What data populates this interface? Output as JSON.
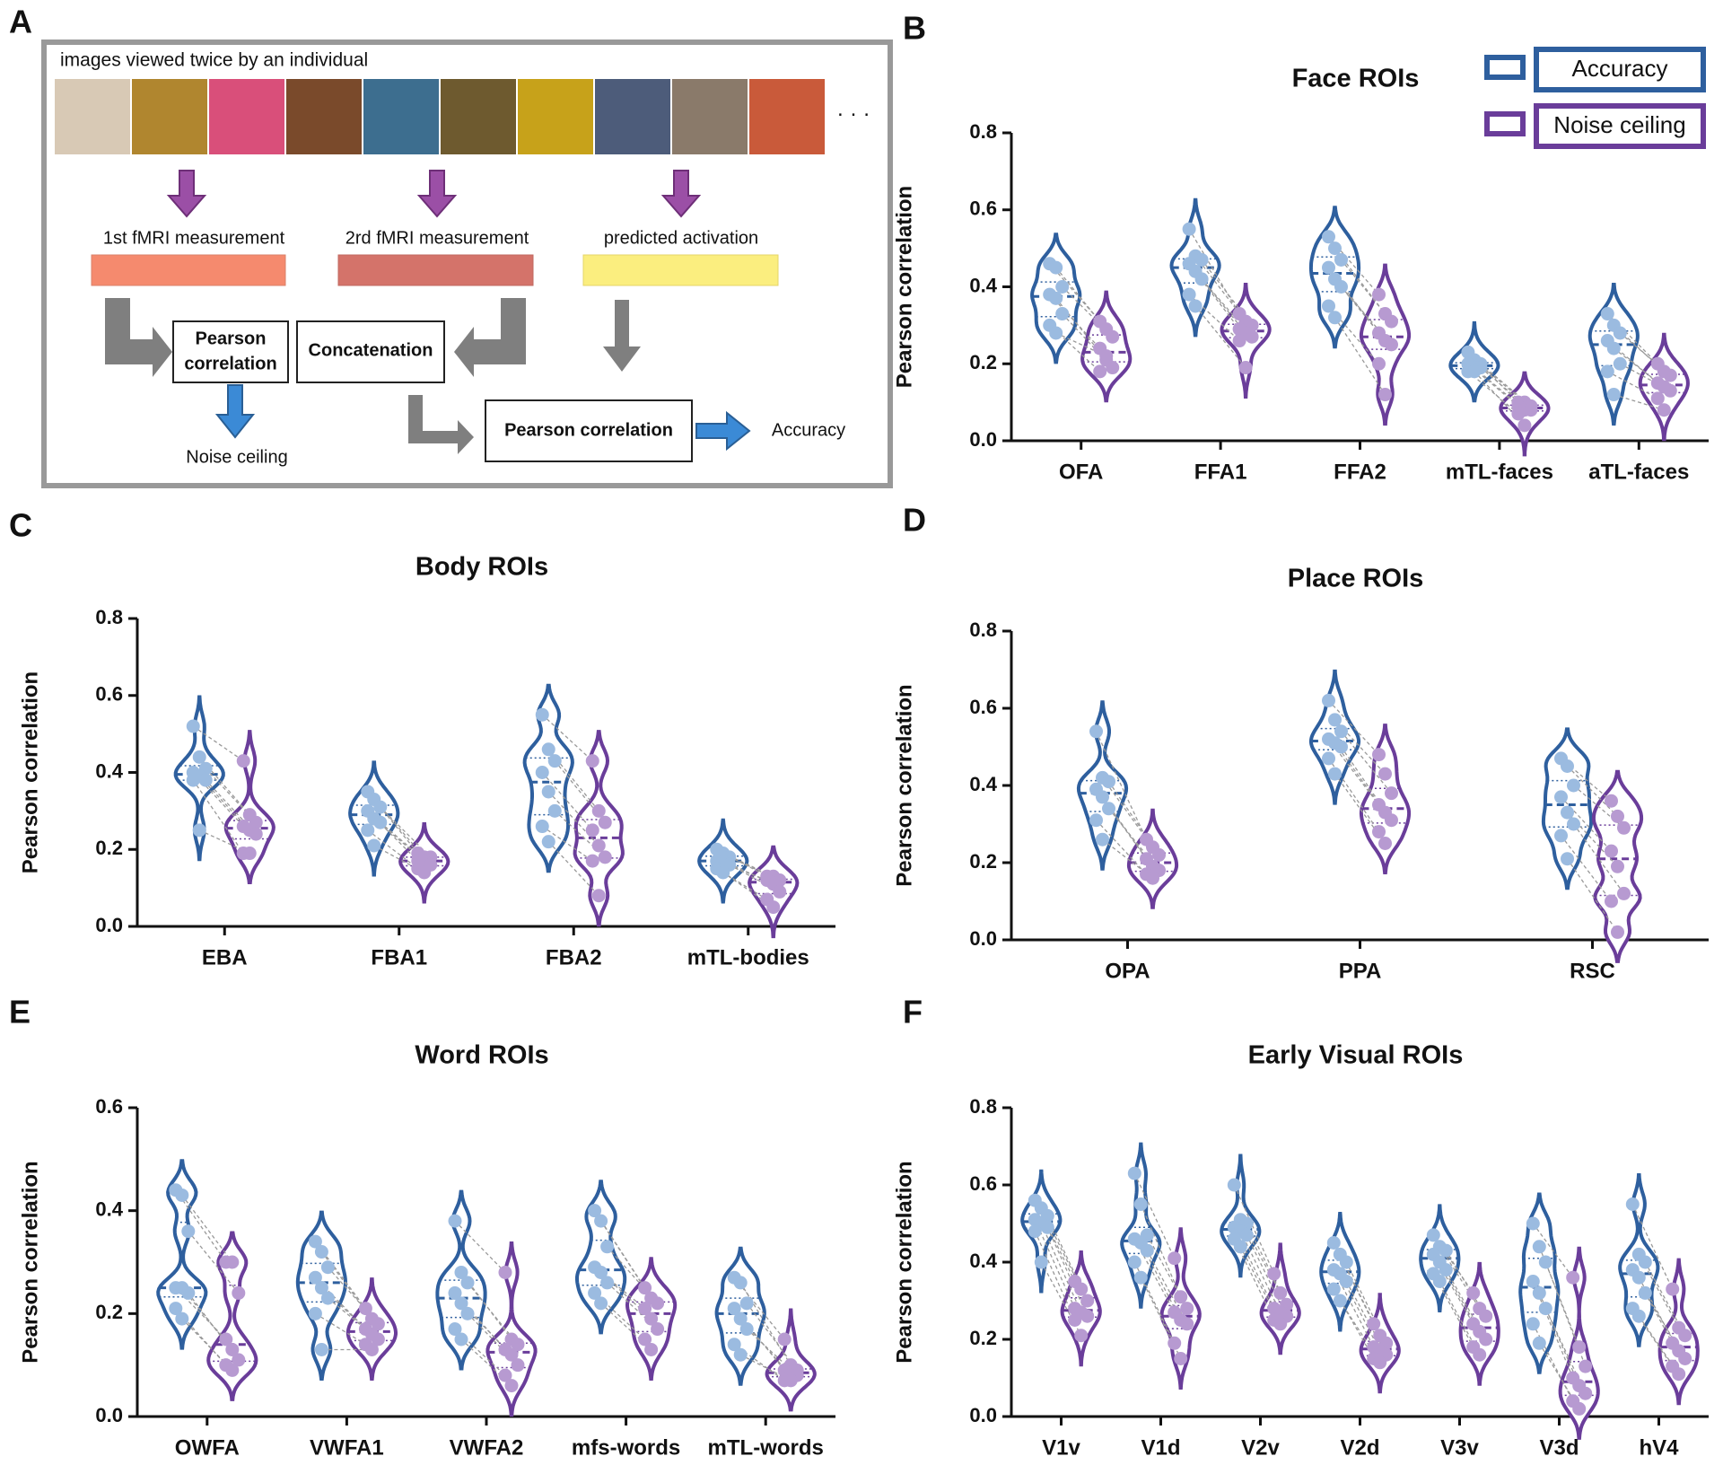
{
  "diagram": {
    "panel": "A",
    "caption": "images viewed twice by an individual",
    "ellipsis": "· · ·",
    "step1": "1st fMRI measurement",
    "step2": "2rd fMRI measurement",
    "step3": "predicted activation",
    "box1": [
      "Pearson",
      "correlation"
    ],
    "box2": "Concatenation",
    "box3": "Pearson correlation",
    "out1": "Noise ceiling",
    "out2": "Accuracy"
  },
  "chart_data": [
    {
      "type": "violin",
      "panel": "B",
      "title": "Face ROIs",
      "y_label": "Pearson correlation",
      "legend": "upper right",
      "categories": [
        "OFA",
        "FFA1",
        "FFA2",
        "mTL-faces",
        "aTL-faces"
      ],
      "ylim": [
        0,
        0.8
      ],
      "yticks": [
        {
          "value": 0,
          "label": "0.0"
        },
        0.2,
        0.4,
        0.6,
        0.8
      ],
      "series": [
        {
          "name": "Accuracy",
          "color": "#2e5f9e",
          "point_color": "#9bbbe0",
          "values": [
            [
              0.46,
              0.45,
              0.4,
              0.38,
              0.37,
              0.33,
              0.3,
              0.28
            ],
            [
              0.55,
              0.48,
              0.47,
              0.46,
              0.44,
              0.42,
              0.38,
              0.35
            ],
            [
              0.53,
              0.5,
              0.47,
              0.45,
              0.42,
              0.4,
              0.35,
              0.32
            ],
            [
              0.23,
              0.21,
              0.2,
              0.2,
              0.19,
              0.19,
              0.18,
              0.18
            ],
            [
              0.33,
              0.3,
              0.28,
              0.26,
              0.24,
              0.2,
              0.18,
              0.12
            ]
          ]
        },
        {
          "name": "Noise ceiling",
          "color": "#6a3d9a",
          "point_color": "#b79ad1",
          "values": [
            [
              0.31,
              0.29,
              0.27,
              0.24,
              0.21,
              0.19,
              0.18,
              0.22
            ],
            [
              0.33,
              0.31,
              0.3,
              0.29,
              0.28,
              0.27,
              0.26,
              0.19
            ],
            [
              0.38,
              0.33,
              0.31,
              0.28,
              0.26,
              0.25,
              0.2,
              0.12
            ],
            [
              0.1,
              0.1,
              0.09,
              0.09,
              0.08,
              0.08,
              0.07,
              0.04
            ],
            [
              0.2,
              0.18,
              0.17,
              0.15,
              0.14,
              0.13,
              0.11,
              0.08
            ]
          ]
        }
      ]
    },
    {
      "type": "violin",
      "panel": "C",
      "title": "Body ROIs",
      "y_label": "Pearson correlation",
      "categories": [
        "EBA",
        "FBA1",
        "FBA2",
        "mTL-bodies"
      ],
      "ylim": [
        0,
        0.8
      ],
      "yticks": [
        {
          "value": 0,
          "label": "0.0"
        },
        0.2,
        0.4,
        0.6,
        0.8
      ],
      "series": [
        {
          "color": "#2e5f9e",
          "point_color": "#9bbbe0",
          "values": [
            [
              0.52,
              0.44,
              0.41,
              0.4,
              0.39,
              0.38,
              0.38,
              0.25
            ],
            [
              0.35,
              0.33,
              0.31,
              0.3,
              0.28,
              0.27,
              0.25,
              0.21
            ],
            [
              0.55,
              0.46,
              0.43,
              0.4,
              0.35,
              0.3,
              0.26,
              0.22
            ],
            [
              0.2,
              0.19,
              0.18,
              0.17,
              0.17,
              0.16,
              0.15,
              0.14
            ]
          ]
        },
        {
          "color": "#6a3d9a",
          "point_color": "#b79ad1",
          "values": [
            [
              0.43,
              0.29,
              0.27,
              0.26,
              0.25,
              0.24,
              0.19,
              0.19
            ],
            [
              0.19,
              0.18,
              0.18,
              0.17,
              0.17,
              0.16,
              0.15,
              0.14
            ],
            [
              0.43,
              0.3,
              0.27,
              0.25,
              0.21,
              0.18,
              0.17,
              0.08
            ],
            [
              0.13,
              0.13,
              0.12,
              0.12,
              0.11,
              0.09,
              0.07,
              0.05
            ]
          ]
        }
      ]
    },
    {
      "type": "violin",
      "panel": "D",
      "title": "Place ROIs",
      "y_label": "Pearson correlation",
      "categories": [
        "OPA",
        "PPA",
        "RSC"
      ],
      "ylim": [
        0,
        0.8
      ],
      "yticks": [
        {
          "value": 0,
          "label": "0.0"
        },
        0.2,
        0.4,
        0.6,
        0.8
      ],
      "series": [
        {
          "color": "#2e5f9e",
          "point_color": "#9bbbe0",
          "values": [
            [
              0.54,
              0.42,
              0.41,
              0.39,
              0.37,
              0.34,
              0.31,
              0.26
            ],
            [
              0.62,
              0.57,
              0.54,
              0.52,
              0.51,
              0.5,
              0.47,
              0.43
            ],
            [
              0.47,
              0.45,
              0.4,
              0.37,
              0.33,
              0.3,
              0.27,
              0.21
            ]
          ]
        },
        {
          "color": "#6a3d9a",
          "point_color": "#b79ad1",
          "values": [
            [
              0.26,
              0.24,
              0.22,
              0.21,
              0.19,
              0.18,
              0.17,
              0.16
            ],
            [
              0.48,
              0.43,
              0.38,
              0.35,
              0.33,
              0.31,
              0.28,
              0.25
            ],
            [
              0.36,
              0.32,
              0.29,
              0.23,
              0.19,
              0.12,
              0.1,
              0.02
            ]
          ]
        }
      ]
    },
    {
      "type": "violin",
      "panel": "E",
      "title": "Word ROIs",
      "y_label": "Pearson correlation",
      "categories": [
        "OWFA",
        "VWFA1",
        "VWFA2",
        "mfs-words",
        "mTL-words"
      ],
      "ylim": [
        0,
        0.6
      ],
      "yticks": [
        {
          "value": 0,
          "label": "0.0"
        },
        0.2,
        0.4,
        0.6
      ],
      "series": [
        {
          "color": "#2e5f9e",
          "point_color": "#9bbbe0",
          "values": [
            [
              0.44,
              0.43,
              0.36,
              0.25,
              0.25,
              0.24,
              0.21,
              0.19
            ],
            [
              0.34,
              0.32,
              0.29,
              0.27,
              0.25,
              0.23,
              0.2,
              0.13
            ],
            [
              0.38,
              0.28,
              0.26,
              0.24,
              0.22,
              0.2,
              0.17,
              0.15
            ],
            [
              0.4,
              0.38,
              0.33,
              0.29,
              0.28,
              0.26,
              0.24,
              0.22
            ],
            [
              0.27,
              0.26,
              0.22,
              0.21,
              0.19,
              0.17,
              0.14,
              0.12
            ]
          ]
        },
        {
          "color": "#6a3d9a",
          "point_color": "#b79ad1",
          "values": [
            [
              0.3,
              0.3,
              0.24,
              0.15,
              0.13,
              0.11,
              0.1,
              0.09
            ],
            [
              0.21,
              0.19,
              0.18,
              0.17,
              0.16,
              0.15,
              0.14,
              0.13
            ],
            [
              0.28,
              0.15,
              0.14,
              0.13,
              0.12,
              0.1,
              0.08,
              0.06
            ],
            [
              0.25,
              0.23,
              0.22,
              0.21,
              0.19,
              0.17,
              0.15,
              0.13
            ],
            [
              0.15,
              0.1,
              0.09,
              0.09,
              0.08,
              0.08,
              0.07,
              0.07
            ]
          ]
        }
      ]
    },
    {
      "type": "violin",
      "panel": "F",
      "title": "Early Visual ROIs",
      "y_label": "Pearson correlation",
      "categories": [
        "V1v",
        "V1d",
        "V2v",
        "V2d",
        "V3v",
        "V3d",
        "hV4"
      ],
      "ylim": [
        0,
        0.8
      ],
      "yticks": [
        {
          "value": 0,
          "label": "0.0"
        },
        0.2,
        0.4,
        0.6,
        0.8
      ],
      "series": [
        {
          "color": "#2e5f9e",
          "point_color": "#9bbbe0",
          "values": [
            [
              0.56,
              0.54,
              0.52,
              0.51,
              0.5,
              0.49,
              0.48,
              0.4
            ],
            [
              0.63,
              0.55,
              0.47,
              0.46,
              0.45,
              0.43,
              0.4,
              0.36
            ],
            [
              0.6,
              0.51,
              0.5,
              0.49,
              0.48,
              0.47,
              0.46,
              0.44
            ],
            [
              0.45,
              0.42,
              0.4,
              0.38,
              0.37,
              0.35,
              0.33,
              0.3
            ],
            [
              0.47,
              0.44,
              0.43,
              0.42,
              0.4,
              0.38,
              0.37,
              0.35
            ],
            [
              0.5,
              0.44,
              0.4,
              0.35,
              0.32,
              0.28,
              0.24,
              0.19
            ],
            [
              0.55,
              0.42,
              0.4,
              0.38,
              0.36,
              0.32,
              0.28,
              0.26
            ]
          ]
        },
        {
          "color": "#6a3d9a",
          "point_color": "#b79ad1",
          "values": [
            [
              0.35,
              0.33,
              0.3,
              0.28,
              0.27,
              0.26,
              0.25,
              0.21
            ],
            [
              0.41,
              0.31,
              0.28,
              0.27,
              0.25,
              0.24,
              0.19,
              0.15
            ],
            [
              0.37,
              0.32,
              0.29,
              0.28,
              0.27,
              0.26,
              0.25,
              0.24
            ],
            [
              0.24,
              0.21,
              0.19,
              0.18,
              0.17,
              0.16,
              0.15,
              0.14
            ],
            [
              0.32,
              0.28,
              0.26,
              0.24,
              0.22,
              0.2,
              0.18,
              0.16
            ],
            [
              0.36,
              0.18,
              0.13,
              0.1,
              0.08,
              0.06,
              0.04,
              0.02
            ],
            [
              0.33,
              0.23,
              0.21,
              0.19,
              0.17,
              0.15,
              0.13,
              0.11
            ]
          ]
        }
      ]
    }
  ]
}
